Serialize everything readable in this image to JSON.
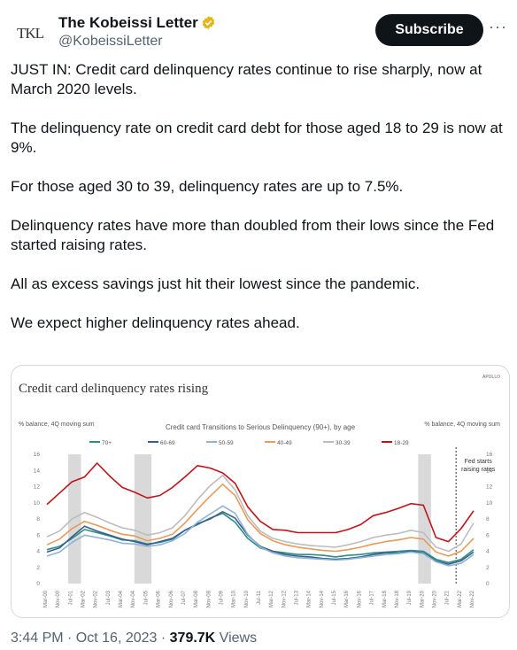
{
  "author": {
    "avatar_text": "TKL",
    "name": "The Kobeissi Letter",
    "handle": "@KobeissiLetter"
  },
  "actions": {
    "subscribe": "Subscribe",
    "more": "···"
  },
  "tweet": {
    "paragraphs": [
      "JUST IN: Credit card delinquency rates continue to rise sharply, now at March 2020 levels.",
      "The delinquency rate on credit card debt for those aged 18 to 29 is now at 9%.",
      "For those aged 30 to 39, delinquency rates are up to 7.5%.",
      "Delinquency rates have more than doubled from their lows since the Fed started raising rates.",
      "All as excess savings just hit their lowest since the pandemic.",
      "We expect higher delinquency rates ahead."
    ]
  },
  "footer": {
    "time": "3:44 PM · Oct 16, 2023 · ",
    "views": "379.7K",
    "views_label": " Views"
  },
  "colors": {
    "c70": "#2a8f84",
    "c60": "#3a5d8c",
    "c50": "#8fb3d8",
    "c40": "#e89a5a",
    "c30": "#bdbdbd",
    "c18": "#c0141b"
  },
  "chart_data": {
    "type": "line",
    "title": "Credit card delinquency rates rising",
    "brand": "APOLLO",
    "subtitle": "Credit card Transitions to Serious Delinquency (90+), by age",
    "ylabel_left": "% balance, 4Q moving sum",
    "ylabel_right": "% balance, 4Q moving sum",
    "annotation": "Fed starts raising rates",
    "ylim": [
      0,
      16
    ],
    "yticks": [
      0,
      2,
      4,
      6,
      8,
      10,
      12,
      14,
      16
    ],
    "x_labels": [
      "Mar-00",
      "Nov-00",
      "Jul-01",
      "Mar-02",
      "Nov-02",
      "Jul-03",
      "Mar-04",
      "Nov-04",
      "Jul-05",
      "Mar-06",
      "Nov-06",
      "Jul-07",
      "Mar-08",
      "Nov-08",
      "Jul-09",
      "Mar-10",
      "Nov-10",
      "Jul-11",
      "Mar-12",
      "Nov-12",
      "Jul-13",
      "Mar-14",
      "Nov-14",
      "Jul-15",
      "Mar-16",
      "Nov-16",
      "Jul-17",
      "Mar-18",
      "Nov-18",
      "Jul-19",
      "Mar-20",
      "Nov-20",
      "Jul-21",
      "Mar-22",
      "Nov-22"
    ],
    "series": [
      {
        "name": "70+",
        "color_key": "c70",
        "values": [
          4.2,
          4.6,
          5.6,
          6.7,
          6.3,
          5.9,
          5.4,
          5.3,
          4.9,
          5.1,
          5.5,
          6.6,
          7.3,
          8.1,
          8.7,
          7.6,
          5.6,
          4.4,
          4.0,
          3.8,
          3.6,
          3.6,
          3.5,
          3.3,
          3.5,
          3.6,
          3.8,
          3.9,
          4.0,
          4.1,
          4.0,
          3.0,
          2.6,
          3.0,
          4.2
        ]
      },
      {
        "name": "60-69",
        "color_key": "c60",
        "values": [
          3.9,
          4.4,
          5.8,
          7.1,
          6.5,
          6.0,
          5.5,
          5.2,
          4.8,
          5.2,
          5.6,
          6.6,
          7.4,
          8.0,
          8.9,
          8.1,
          6.0,
          4.6,
          4.0,
          3.6,
          3.4,
          3.3,
          3.1,
          3.0,
          3.1,
          3.3,
          3.6,
          3.8,
          3.8,
          4.0,
          3.8,
          2.8,
          2.4,
          2.8,
          3.9
        ]
      },
      {
        "name": "50-59",
        "color_key": "c50",
        "values": [
          3.4,
          3.9,
          5.1,
          6.0,
          5.7,
          5.4,
          5.0,
          4.9,
          4.6,
          4.8,
          5.3,
          6.2,
          7.6,
          8.6,
          9.6,
          8.7,
          6.1,
          4.5,
          3.8,
          3.4,
          3.2,
          3.1,
          3.0,
          2.9,
          3.0,
          3.2,
          3.4,
          3.6,
          3.7,
          3.9,
          3.7,
          2.7,
          2.2,
          2.5,
          3.6
        ]
      },
      {
        "name": "40-49",
        "color_key": "c40",
        "values": [
          4.8,
          5.5,
          6.8,
          7.7,
          7.2,
          6.6,
          6.1,
          5.9,
          5.3,
          5.6,
          6.1,
          7.5,
          9.2,
          10.8,
          12.3,
          10.9,
          7.9,
          6.2,
          5.3,
          4.8,
          4.5,
          4.3,
          4.1,
          4.0,
          4.2,
          4.5,
          4.9,
          5.2,
          5.4,
          5.7,
          5.5,
          3.9,
          3.4,
          4.0,
          5.6
        ]
      },
      {
        "name": "30-39",
        "color_key": "c30",
        "values": [
          5.8,
          6.5,
          8.0,
          8.8,
          8.2,
          7.5,
          6.9,
          6.6,
          6.0,
          6.3,
          6.9,
          8.4,
          10.4,
          12.1,
          13.4,
          11.6,
          8.4,
          6.5,
          5.6,
          5.2,
          4.9,
          4.7,
          4.6,
          4.5,
          4.8,
          5.2,
          5.7,
          6.0,
          6.2,
          6.6,
          6.3,
          4.5,
          4.0,
          4.9,
          7.5
        ]
      },
      {
        "name": "18-29",
        "color_key": "c18",
        "values": [
          9.8,
          11.2,
          12.6,
          13.2,
          14.9,
          13.3,
          11.9,
          11.3,
          10.6,
          10.9,
          11.9,
          13.2,
          14.6,
          14.3,
          13.7,
          12.4,
          9.5,
          7.7,
          6.7,
          6.6,
          6.3,
          6.3,
          6.3,
          6.3,
          6.7,
          7.3,
          8.4,
          8.8,
          9.3,
          9.9,
          9.7,
          5.7,
          5.2,
          6.8,
          9.0
        ]
      }
    ]
  }
}
